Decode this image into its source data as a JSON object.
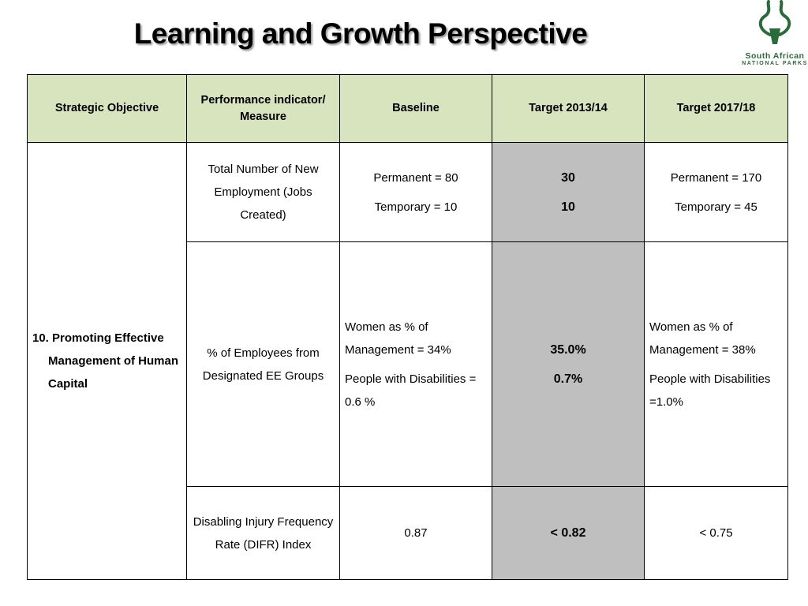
{
  "header": {
    "title": "Learning and Growth Perspective",
    "logo": {
      "line1": "South African",
      "line2": "NATIONAL PARKS"
    }
  },
  "table": {
    "columns": [
      "Strategic Objective",
      "Performance indicator/ Measure",
      "Baseline",
      "Target 2013/14",
      "Target 2017/18"
    ],
    "objective": "10. Promoting Effective Management of Human Capital",
    "rows": [
      {
        "indicator": "Total Number of New Employment  (Jobs Created)",
        "baseline": [
          "Permanent  = 80",
          "Temporary  = 10"
        ],
        "target_2013": [
          "30",
          "10"
        ],
        "target_2017": [
          "Permanent  = 170",
          "Temporary  = 45"
        ]
      },
      {
        "indicator": "% of Employees from Designated EE Groups",
        "baseline": [
          "Women as % of Management = 34%",
          "People with Disabilities = 0.6 %"
        ],
        "target_2013": [
          "35.0%",
          "0.7%"
        ],
        "target_2017": [
          "Women as % of Management = 38%",
          "People with Disabilities =1.0%"
        ]
      },
      {
        "indicator": "Disabling Injury Frequency Rate (DIFR) Index",
        "baseline": [
          "0.87"
        ],
        "target_2013": [
          "< 0.82"
        ],
        "target_2017": [
          "< 0.75"
        ]
      }
    ]
  }
}
